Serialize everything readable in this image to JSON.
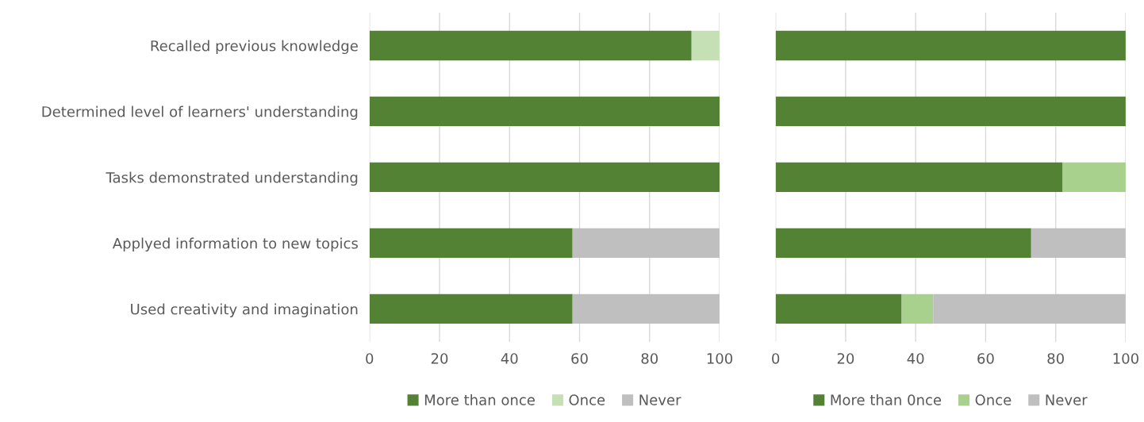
{
  "chart_data": [
    {
      "type": "bar",
      "orientation": "horizontal",
      "stacked": true,
      "categories": [
        "Recalled previous knowledge",
        "Determined level of learners' understanding",
        "Tasks demonstrated understanding",
        "Applyed information to new topics",
        "Used creativity and imagination"
      ],
      "series": [
        {
          "name": "More than once",
          "color": "#548235",
          "values": [
            92,
            100,
            100,
            58,
            58
          ]
        },
        {
          "name": "Once",
          "color": "#c5e0b4",
          "values": [
            8,
            0,
            0,
            0,
            0
          ]
        },
        {
          "name": "Never",
          "color": "#bfbfbf",
          "values": [
            0,
            0,
            0,
            42,
            42
          ]
        }
      ],
      "xlim": [
        0,
        100
      ],
      "xticks": [
        0,
        20,
        40,
        60,
        80,
        100
      ],
      "grid": "x",
      "legend": "bottom"
    },
    {
      "type": "bar",
      "orientation": "horizontal",
      "stacked": true,
      "categories": [
        null,
        null,
        null,
        null,
        null
      ],
      "series": [
        {
          "name": "More than 0nce",
          "color": "#548235",
          "values": [
            100,
            100,
            82,
            73,
            36
          ]
        },
        {
          "name": "Once",
          "color": "#a9d18e",
          "values": [
            0,
            0,
            18,
            0,
            9
          ]
        },
        {
          "name": "Never",
          "color": "#bfbfbf",
          "values": [
            0,
            0,
            0,
            27,
            55
          ]
        }
      ],
      "xlim": [
        0,
        100
      ],
      "xticks": [
        0,
        20,
        40,
        60,
        80,
        100
      ],
      "grid": "x",
      "legend": "bottom",
      "tick_labels": "x"
    }
  ]
}
